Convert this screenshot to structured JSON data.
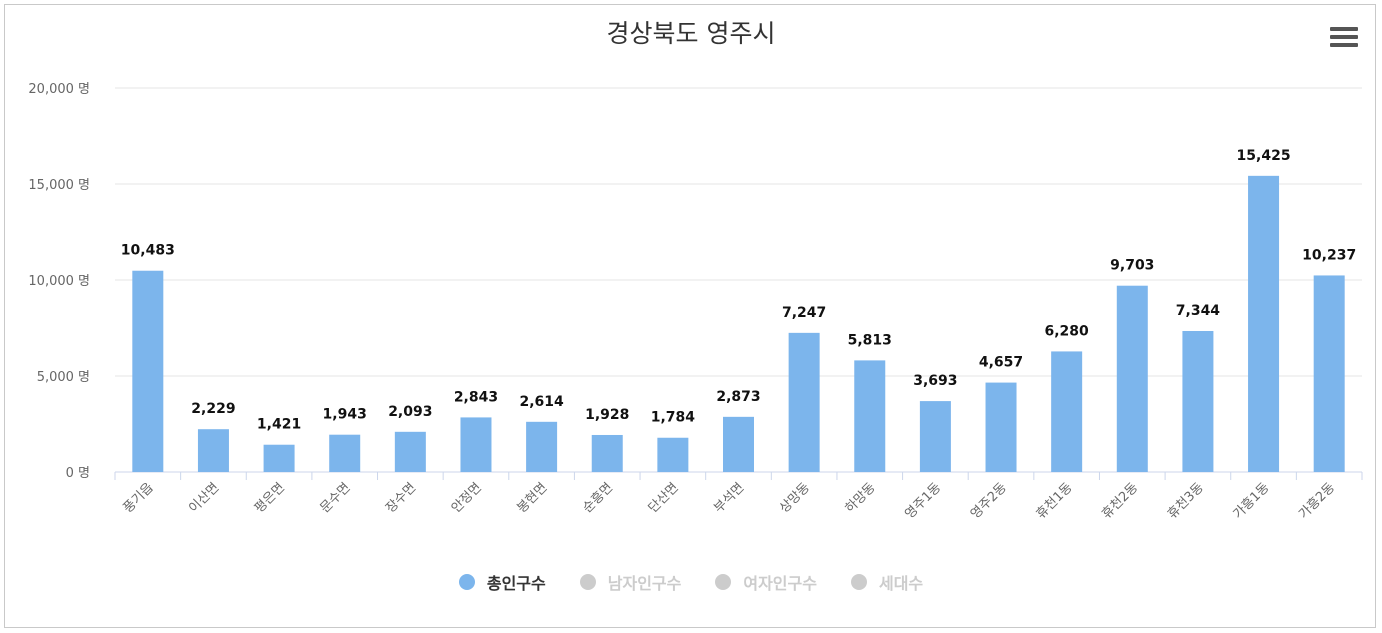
{
  "title": "경상북도 영주시",
  "menu_icon": "hamburger-menu-icon",
  "colors": {
    "bar": "#7cb5ec",
    "legend_inactive": "#cccccc",
    "legend_active_text": "#333333",
    "legend_inactive_text": "#cccccc"
  },
  "legend": [
    {
      "label": "총인구수",
      "active": true
    },
    {
      "label": "남자인구수",
      "active": false
    },
    {
      "label": "여자인구수",
      "active": false
    },
    {
      "label": "세대수",
      "active": false
    }
  ],
  "chart_data": {
    "type": "bar",
    "title": "경상북도 영주시",
    "categories": [
      "풍기읍",
      "이산면",
      "평은면",
      "문수면",
      "장수면",
      "안정면",
      "봉현면",
      "순흥면",
      "단산면",
      "부석면",
      "상망동",
      "하망동",
      "영주1동",
      "영주2동",
      "휴천1동",
      "휴천2동",
      "휴천3동",
      "가흥1동",
      "가흥2동"
    ],
    "series": [
      {
        "name": "총인구수",
        "values": [
          10483,
          2229,
          1421,
          1943,
          2093,
          2843,
          2614,
          1928,
          1784,
          2873,
          7247,
          5813,
          3693,
          4657,
          6280,
          9703,
          7344,
          15425,
          10237
        ]
      }
    ],
    "data_labels": [
      "10,483",
      "2,229",
      "1,421",
      "1,943",
      "2,093",
      "2,843",
      "2,614",
      "1,928",
      "1,784",
      "2,873",
      "7,247",
      "5,813",
      "3,693",
      "4,657",
      "6,280",
      "9,703",
      "7,344",
      "15,425",
      "10,237"
    ],
    "ylim": [
      0,
      20000
    ],
    "yticks": [
      0,
      5000,
      10000,
      15000,
      20000
    ],
    "ytick_labels": [
      "0 명",
      "5,000 명",
      "10,000 명",
      "15,000 명",
      "20,000 명"
    ],
    "grid": true,
    "legend_position": "bottom-center"
  }
}
